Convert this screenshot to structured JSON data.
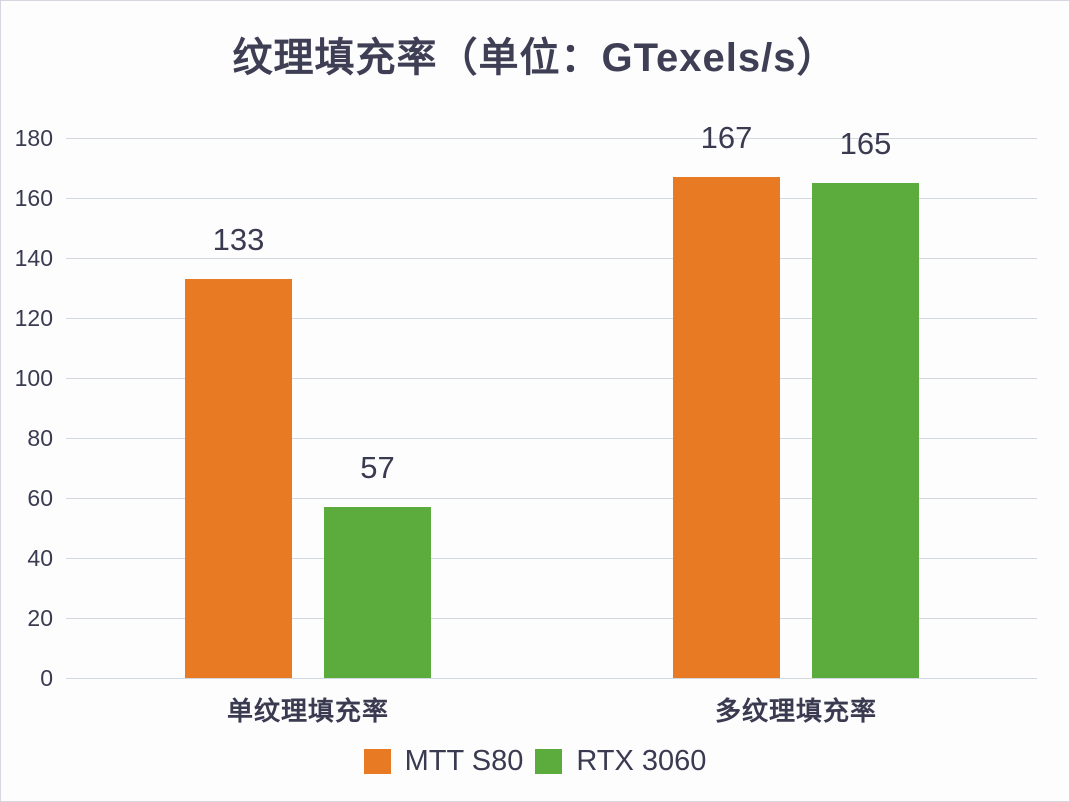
{
  "chart_data": {
    "type": "bar",
    "title": "纹理填充率（单位：GTexels/s）",
    "categories": [
      "单纹理填充率",
      "多纹理填充率"
    ],
    "series": [
      {
        "name": "MTT S80",
        "color": "#E87A24",
        "values": [
          133,
          167
        ]
      },
      {
        "name": "RTX 3060",
        "color": "#5CAC3D",
        "values": [
          57,
          165
        ]
      }
    ],
    "xlabel": "",
    "ylabel": "",
    "ylim": [
      0,
      180
    ],
    "ytick_step": 20,
    "ytick_labels": [
      "0",
      "20",
      "40",
      "60",
      "80",
      "100",
      "120",
      "140",
      "160",
      "180"
    ],
    "grid": true,
    "legend_position": "bottom",
    "show_value_labels": true
  },
  "theme": {
    "background": "#FDFDFE",
    "frame_border_color": "#D6D6DE",
    "grid_color": "#D3D8E0",
    "text_color": "#3A3A50",
    "title_color": "#3E3E54"
  }
}
